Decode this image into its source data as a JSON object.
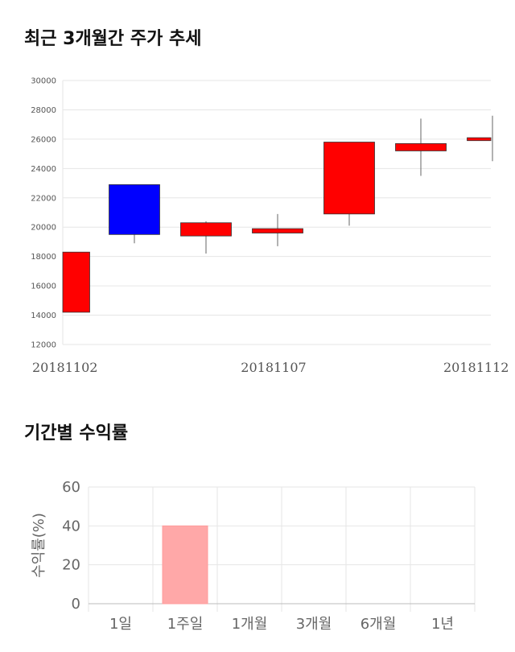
{
  "titles": {
    "candle": "최근 3개월간 주가 추세",
    "returns": "기간별 수익률"
  },
  "chart_data": [
    {
      "type": "candlestick",
      "title": "최근 3개월간 주가 추세",
      "ylim": [
        12000,
        30000
      ],
      "y_ticks": [
        12000,
        14000,
        16000,
        18000,
        20000,
        22000,
        24000,
        26000,
        28000,
        30000
      ],
      "x_tick_labels": [
        "20181102",
        "20181107",
        "20181112"
      ],
      "up_color": "#ff0000",
      "down_color": "#0000ff",
      "candles": [
        {
          "open": 14200,
          "close": 18300,
          "high": 18300,
          "low": 14200
        },
        {
          "open": 22900,
          "close": 19500,
          "high": 22900,
          "low": 18900
        },
        {
          "open": 19400,
          "close": 20300,
          "high": 20400,
          "low": 18200
        },
        {
          "open": 19600,
          "close": 19900,
          "high": 20900,
          "low": 18700
        },
        {
          "open": 20900,
          "close": 25800,
          "high": 25800,
          "low": 20100
        },
        {
          "open": 25200,
          "close": 25700,
          "high": 27400,
          "low": 23500
        },
        {
          "open": 25900,
          "close": 26100,
          "high": 27600,
          "low": 24500
        }
      ],
      "grid": true
    },
    {
      "type": "bar",
      "title": "기간별 수익률",
      "categories": [
        "1일",
        "1주일",
        "1개월",
        "3개월",
        "6개월",
        "1년"
      ],
      "values": [
        null,
        40,
        null,
        null,
        null,
        null
      ],
      "ylabel": "수익률(%)",
      "ylim": [
        0,
        60
      ],
      "y_ticks": [
        0,
        20,
        40,
        60
      ],
      "bar_color": "#ffa8a8",
      "grid": true
    }
  ]
}
